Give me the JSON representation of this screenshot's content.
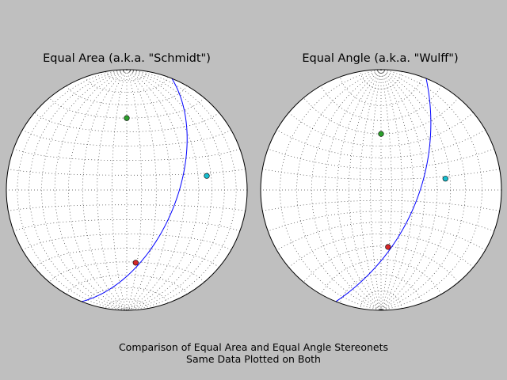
{
  "figure": {
    "caption_line1": "Comparison of Equal Area and Equal Angle Stereonets",
    "caption_line2": "Same Data Plotted on Both"
  },
  "chart_data": [
    {
      "type": "scatter",
      "projection": "equal_area",
      "title": "Equal Area (a.k.a. \"Schmidt\")",
      "grid": true,
      "grid_spacing_deg": 10,
      "points": [
        {
          "name": "red-pole",
          "strike": 263,
          "dip": 51,
          "color": "#d62728"
        },
        {
          "name": "green-pole",
          "strike": 90,
          "dip": 50,
          "color": "#2ca02c"
        },
        {
          "name": "cyan-pole",
          "strike": 170,
          "dip": 57,
          "color": "#17becf"
        }
      ],
      "great_circle": {
        "strike": 22,
        "dip": 56,
        "color": "#0000ff"
      }
    },
    {
      "type": "scatter",
      "projection": "equal_angle",
      "title": "Equal Angle (a.k.a. \"Wulff\")",
      "grid": true,
      "grid_spacing_deg": 10,
      "points": [
        {
          "name": "red-pole",
          "strike": 263,
          "dip": 51,
          "color": "#d62728"
        },
        {
          "name": "green-pole",
          "strike": 90,
          "dip": 50,
          "color": "#2ca02c"
        },
        {
          "name": "cyan-pole",
          "strike": 170,
          "dip": 57,
          "color": "#17becf"
        }
      ],
      "great_circle": {
        "strike": 22,
        "dip": 56,
        "color": "#0000ff"
      }
    }
  ]
}
